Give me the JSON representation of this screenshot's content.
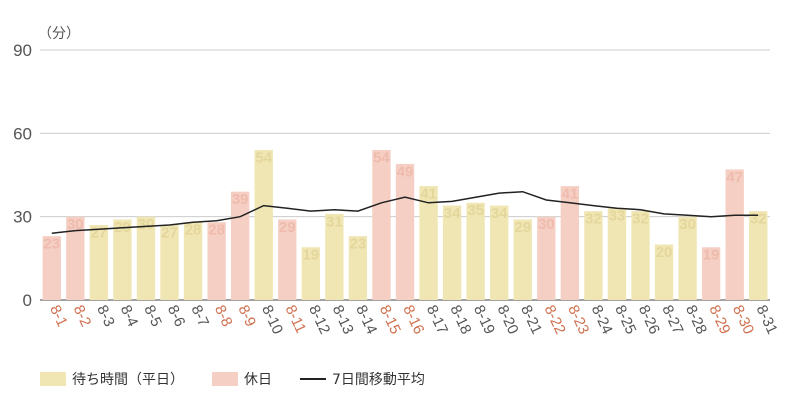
{
  "chart_data": {
    "type": "bar",
    "unit_label": "（分）",
    "ylim": [
      0,
      90
    ],
    "yticks": [
      0,
      30,
      60,
      90
    ],
    "grid": true,
    "legend_position": "bottom-left",
    "categories": [
      "8-1",
      "8-2",
      "8-3",
      "8-4",
      "8-5",
      "8-6",
      "8-7",
      "8-8",
      "8-9",
      "8-10",
      "8-11",
      "8-12",
      "8-13",
      "8-14",
      "8-15",
      "8-16",
      "8-17",
      "8-18",
      "8-19",
      "8-20",
      "8-21",
      "8-22",
      "8-23",
      "8-24",
      "8-25",
      "8-26",
      "8-27",
      "8-28",
      "8-29",
      "8-30",
      "8-31"
    ],
    "values": [
      23,
      30,
      27,
      29,
      30,
      27,
      28,
      28,
      39,
      54,
      29,
      19,
      31,
      23,
      54,
      49,
      41,
      34,
      35,
      34,
      29,
      30,
      41,
      32,
      33,
      32,
      20,
      30,
      19,
      47,
      32
    ],
    "holiday": [
      true,
      true,
      false,
      false,
      false,
      false,
      false,
      true,
      true,
      false,
      true,
      false,
      false,
      false,
      true,
      true,
      false,
      false,
      false,
      false,
      false,
      true,
      true,
      false,
      false,
      false,
      false,
      false,
      true,
      true,
      false
    ],
    "moving_average": [
      24,
      25,
      25.5,
      26,
      26.5,
      27,
      28,
      28.5,
      30,
      34,
      33,
      32,
      32.5,
      32,
      35,
      37,
      35,
      35.5,
      37,
      38.5,
      39,
      36,
      35,
      34,
      33,
      32.5,
      31,
      30.5,
      30,
      30.5,
      30.5
    ],
    "series": [
      {
        "name": "待ち時間（平日）",
        "color": "#f0e6b4"
      },
      {
        "name": "休日",
        "color": "#f5cfc4"
      },
      {
        "name": "7日間移動平均",
        "color": "#222222"
      }
    ],
    "colors": {
      "weekday_bar": "#f0e6b4",
      "holiday_bar": "#f5cfc4",
      "weekday_label": "#e5d79b",
      "holiday_label": "#efbbad",
      "weekday_tick": "#555555",
      "holiday_tick": "#d0704e",
      "line": "#222222",
      "grid": "#cccccc"
    }
  }
}
